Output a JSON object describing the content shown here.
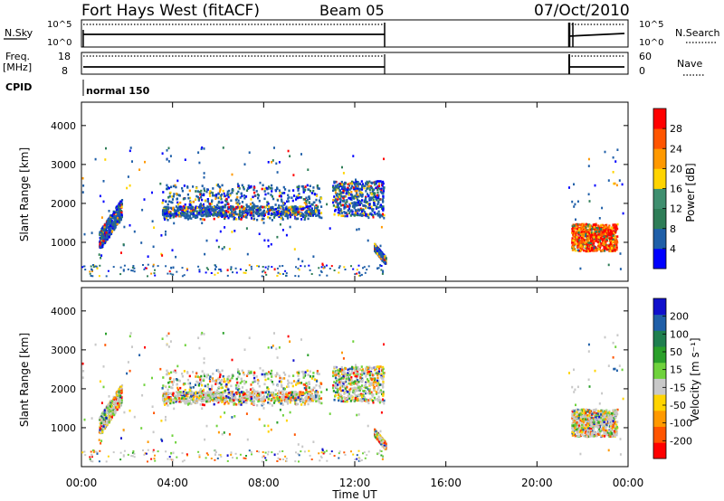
{
  "header": {
    "title": "Fort Hays West (fitACF)",
    "beam": "Beam 05",
    "date": "07/Oct/2010"
  },
  "status_panels": {
    "nsky_label": "N.Sky",
    "nsearch_label": "N.Search",
    "freq_label": "Freq.",
    "freq_unit": "[MHz]",
    "nave_label": "Nave",
    "cpid_label": "CPID",
    "noise_left_ticks": [
      "10^5",
      "10^0"
    ],
    "noise_right_ticks": [
      "10^5",
      "10^0"
    ],
    "freq_left_ticks": [
      "18",
      "8"
    ],
    "freq_right_ticks": [
      "60",
      "0"
    ],
    "cpid_name": "normal 150"
  },
  "colors": {
    "power": [
      "#0000ff",
      "#1f5fa8",
      "#2e7d57",
      "#3f8f6f",
      "#ffd400",
      "#ff9900",
      "#ff5500",
      "#ff0000"
    ],
    "velocity": [
      "#ff0000",
      "#ff5500",
      "#ff9900",
      "#ffd400",
      "#c8c8c8",
      "#6fd23c",
      "#2aa02a",
      "#1f7f4f",
      "#1f5fa8",
      "#1010cc"
    ]
  },
  "chart_data": [
    {
      "type": "heatmap",
      "title": "",
      "xlabel": "",
      "ylabel": "Slant Range [km]",
      "xlim": [
        "00:00",
        "24:00"
      ],
      "ylim": [
        0,
        4600
      ],
      "y_ticks": [
        "1000",
        "2000",
        "3000",
        "4000"
      ],
      "colorbar": {
        "label": "Power [dB]",
        "ticks": [
          "4",
          "8",
          "12",
          "16",
          "20",
          "24",
          "28"
        ],
        "range": [
          0,
          32
        ]
      },
      "echo_regions": [
        {
          "t_start": "00:45",
          "t_end": "01:45",
          "range_km": [
            900,
            2000
          ],
          "note": "arc"
        },
        {
          "t_start": "03:30",
          "t_end": "10:30",
          "range_km": [
            1600,
            2500
          ]
        },
        {
          "t_start": "11:00",
          "t_end": "13:15",
          "range_km": [
            1700,
            2600
          ]
        },
        {
          "t_start": "12:50",
          "t_end": "13:20",
          "range_km": [
            500,
            1000
          ]
        },
        {
          "t_start": "21:30",
          "t_end": "23:30",
          "range_km": [
            800,
            1500
          ]
        }
      ]
    },
    {
      "type": "heatmap",
      "title": "",
      "xlabel": "Time UT",
      "ylabel": "Slant Range [km]",
      "xlim": [
        "00:00",
        "24:00"
      ],
      "ylim": [
        0,
        4600
      ],
      "y_ticks": [
        "1000",
        "2000",
        "3000",
        "4000"
      ],
      "x_ticks": [
        "00:00",
        "04:00",
        "08:00",
        "12:00",
        "16:00",
        "20:00",
        "00:00"
      ],
      "colorbar": {
        "label": "Velocity [m s⁻¹]",
        "ticks": [
          "200",
          "100",
          "50",
          "15",
          "-15",
          "-50",
          "-100",
          "-200"
        ],
        "range": [
          -250,
          250
        ]
      }
    }
  ]
}
